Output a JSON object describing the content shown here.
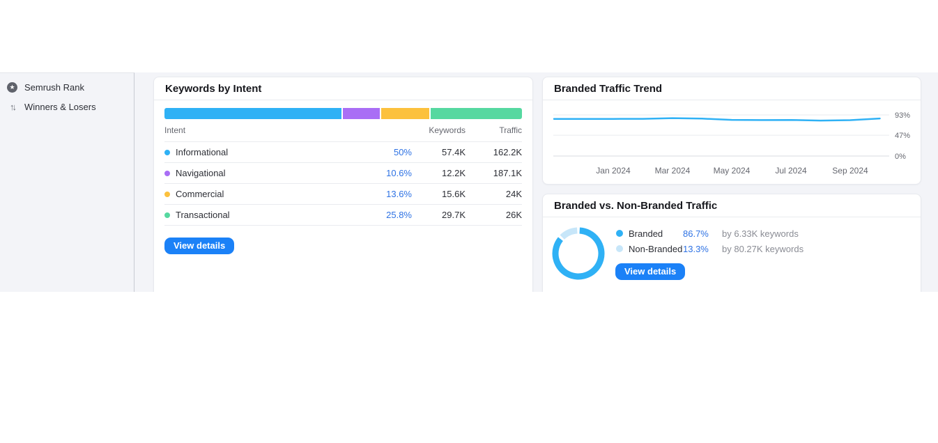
{
  "colors": {
    "accent_blue": "#2fb1f5",
    "purple": "#a96ef5",
    "orange": "#fcc13d",
    "green": "#56d8a0",
    "light_blue": "#c7e6f9",
    "link_blue": "#2e72e4",
    "button_blue": "#1b81f7",
    "strip_bg": "#f3f4f8"
  },
  "sidebar": {
    "items": [
      {
        "label": "Semrush Rank",
        "icon": "rank-star-icon"
      },
      {
        "label": "Winners & Losers",
        "icon": "winners-losers-arrows-icon"
      }
    ]
  },
  "intent_card": {
    "title": "Keywords by Intent",
    "columns": {
      "intent": "Intent",
      "keywords": "Keywords",
      "traffic": "Traffic"
    },
    "view_details_label": "View details",
    "rows": [
      {
        "label": "Informational",
        "color": "#2fb1f5",
        "percent": "50%",
        "keywords": "57.4K",
        "traffic": "162.2K"
      },
      {
        "label": "Navigational",
        "color": "#a96ef5",
        "percent": "10.6%",
        "keywords": "12.2K",
        "traffic": "187.1K"
      },
      {
        "label": "Commercial",
        "color": "#fcc13d",
        "percent": "13.6%",
        "keywords": "15.6K",
        "traffic": "24K"
      },
      {
        "label": "Transactional",
        "color": "#56d8a0",
        "percent": "25.8%",
        "keywords": "29.7K",
        "traffic": "26K"
      }
    ]
  },
  "trend_card": {
    "title": "Branded Traffic Trend"
  },
  "branded_card": {
    "title": "Branded vs. Non-Branded Traffic",
    "view_details_label": "View details",
    "legend": [
      {
        "label": "Branded",
        "color": "#2fb1f5",
        "percent": "86.7%",
        "note": "by 6.33K keywords"
      },
      {
        "label": "Non-Branded",
        "color": "#c7e6f9",
        "percent": "13.3%",
        "note": "by 80.27K keywords"
      }
    ]
  },
  "chart_data": [
    {
      "type": "bar",
      "variant": "horizontal-stacked",
      "title": "Keywords by Intent",
      "categories": [
        "Informational",
        "Navigational",
        "Commercial",
        "Transactional"
      ],
      "values": [
        50,
        10.6,
        13.6,
        25.8
      ],
      "colors": [
        "#2fb1f5",
        "#a96ef5",
        "#fcc13d",
        "#56d8a0"
      ],
      "unit": "%"
    },
    {
      "type": "line",
      "title": "Branded Traffic Trend",
      "x": [
        "Nov 2023",
        "Dec 2023",
        "Jan 2024",
        "Feb 2024",
        "Mar 2024",
        "Apr 2024",
        "May 2024",
        "Jun 2024",
        "Jul 2024",
        "Aug 2024",
        "Sep 2024",
        "Oct 2024"
      ],
      "values": [
        84,
        83.8,
        84,
        84.2,
        85.8,
        84.6,
        81.8,
        81.4,
        81.6,
        80.2,
        81.2,
        85.0
      ],
      "x_tick_labels": [
        "Jan 2024",
        "Mar 2024",
        "May 2024",
        "Jul 2024",
        "Sep 2024"
      ],
      "x_tick_indexes": [
        2,
        4,
        6,
        8,
        10
      ],
      "y_ticks": [
        {
          "label": "93%",
          "value": 93
        },
        {
          "label": "47%",
          "value": 47
        },
        {
          "label": "0%",
          "value": 0
        }
      ],
      "ylim": [
        0,
        93
      ],
      "grid": true,
      "line_color": "#2fb1f5",
      "legend_position": "none",
      "ylabel": "",
      "xlabel": ""
    },
    {
      "type": "pie",
      "variant": "donut",
      "title": "Branded vs. Non-Branded Traffic",
      "categories": [
        "Branded",
        "Non-Branded"
      ],
      "values": [
        86.7,
        13.3
      ],
      "colors": [
        "#2fb1f5",
        "#c7e6f9"
      ],
      "unit": "%"
    }
  ]
}
